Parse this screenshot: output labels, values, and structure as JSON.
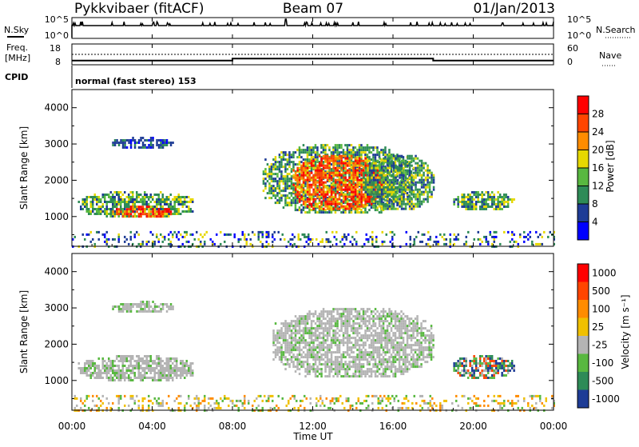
{
  "header": {
    "radar": "Pykkvibaer (fitACF)",
    "beam": "Beam 07",
    "date": "01/Jan/2013"
  },
  "nsky_panel": {
    "left_label": "N.Sky",
    "right_label": "N.Search",
    "left_ticks": [
      "10^5",
      "10^0"
    ],
    "right_ticks": [
      "10^5",
      "10^0"
    ]
  },
  "freq_panel": {
    "left_label_1": "Freq.",
    "left_label_2": "[MHz]",
    "right_label": "Nave",
    "left_ticks": [
      "18",
      "8"
    ],
    "right_ticks": [
      "60",
      "0"
    ]
  },
  "cpid": {
    "label": "CPID",
    "mode": "normal (fast stereo) 153"
  },
  "x_axis": {
    "label": "Time UT",
    "ticks": [
      "00:00",
      "04:00",
      "08:00",
      "12:00",
      "16:00",
      "20:00",
      "00:00"
    ]
  },
  "y_axis": {
    "label": "Slant Range [km]",
    "ticks": [
      "4000",
      "3000",
      "2000",
      "1000"
    ]
  },
  "power_bar": {
    "label": "Power [dB]",
    "ticks": [
      "28",
      "24",
      "20",
      "16",
      "12",
      "8",
      "4"
    ],
    "colors": [
      "#0000ff",
      "#1e3c96",
      "#2e8b57",
      "#58b840",
      "#e6d800",
      "#ff8c00",
      "#ff4500",
      "#ff0000"
    ]
  },
  "velocity_bar": {
    "label": "Velocity [m s⁻¹]",
    "ticks": [
      "1000",
      "500",
      "100",
      "25",
      "-25",
      "-100",
      "-500",
      "-1000"
    ],
    "colors": [
      "#1e3c96",
      "#2e8b57",
      "#58b840",
      "#b4b4b4",
      "#f0c000",
      "#ff8c00",
      "#ff4500",
      "#ff0000"
    ]
  },
  "chart_data": {
    "type": "heatmap",
    "x_range_hours": [
      0,
      24
    ],
    "y_range_km": [
      180,
      4500
    ],
    "frequency_mhz": [
      {
        "t0": 0.0,
        "t1": 8.0,
        "value": 10
      },
      {
        "t0": 8.0,
        "t1": 18.0,
        "value": 11
      },
      {
        "t0": 18.0,
        "t1": 24.0,
        "value": 10
      }
    ],
    "power_regions": [
      {
        "t0": 2.0,
        "t1": 5.0,
        "r0": 2900,
        "r1": 3200,
        "level": "low"
      },
      {
        "t0": 0.3,
        "t1": 6.0,
        "r0": 1000,
        "r1": 1700,
        "level": "mid"
      },
      {
        "t0": 2.0,
        "t1": 5.0,
        "r0": 1000,
        "r1": 1300,
        "level": "high"
      },
      {
        "t0": 9.5,
        "t1": 17.0,
        "r0": 1100,
        "r1": 3000,
        "level": "mid"
      },
      {
        "t0": 11.0,
        "t1": 15.5,
        "r0": 1200,
        "r1": 2700,
        "level": "high"
      },
      {
        "t0": 14.5,
        "t1": 18.0,
        "r0": 1200,
        "r1": 2700,
        "level": "mid"
      },
      {
        "t0": 19.0,
        "t1": 22.0,
        "r0": 1200,
        "r1": 1700,
        "level": "mid"
      },
      {
        "t0": 0.0,
        "t1": 24.0,
        "r0": 200,
        "r1": 600,
        "level": "noise"
      }
    ],
    "velocity_regions": [
      {
        "t0": 2.0,
        "t1": 5.0,
        "r0": 2900,
        "r1": 3200,
        "v": "25"
      },
      {
        "t0": 0.3,
        "t1": 6.0,
        "r0": 1000,
        "r1": 1700,
        "v": "25"
      },
      {
        "t0": 10.0,
        "t1": 18.0,
        "r0": 1100,
        "r1": 3000,
        "v": "25"
      },
      {
        "t0": 19.0,
        "t1": 22.0,
        "r0": 1100,
        "r1": 1700,
        "v": "100"
      },
      {
        "t0": 0.0,
        "t1": 24.0,
        "r0": 200,
        "r1": 600,
        "v": "-100"
      }
    ]
  }
}
